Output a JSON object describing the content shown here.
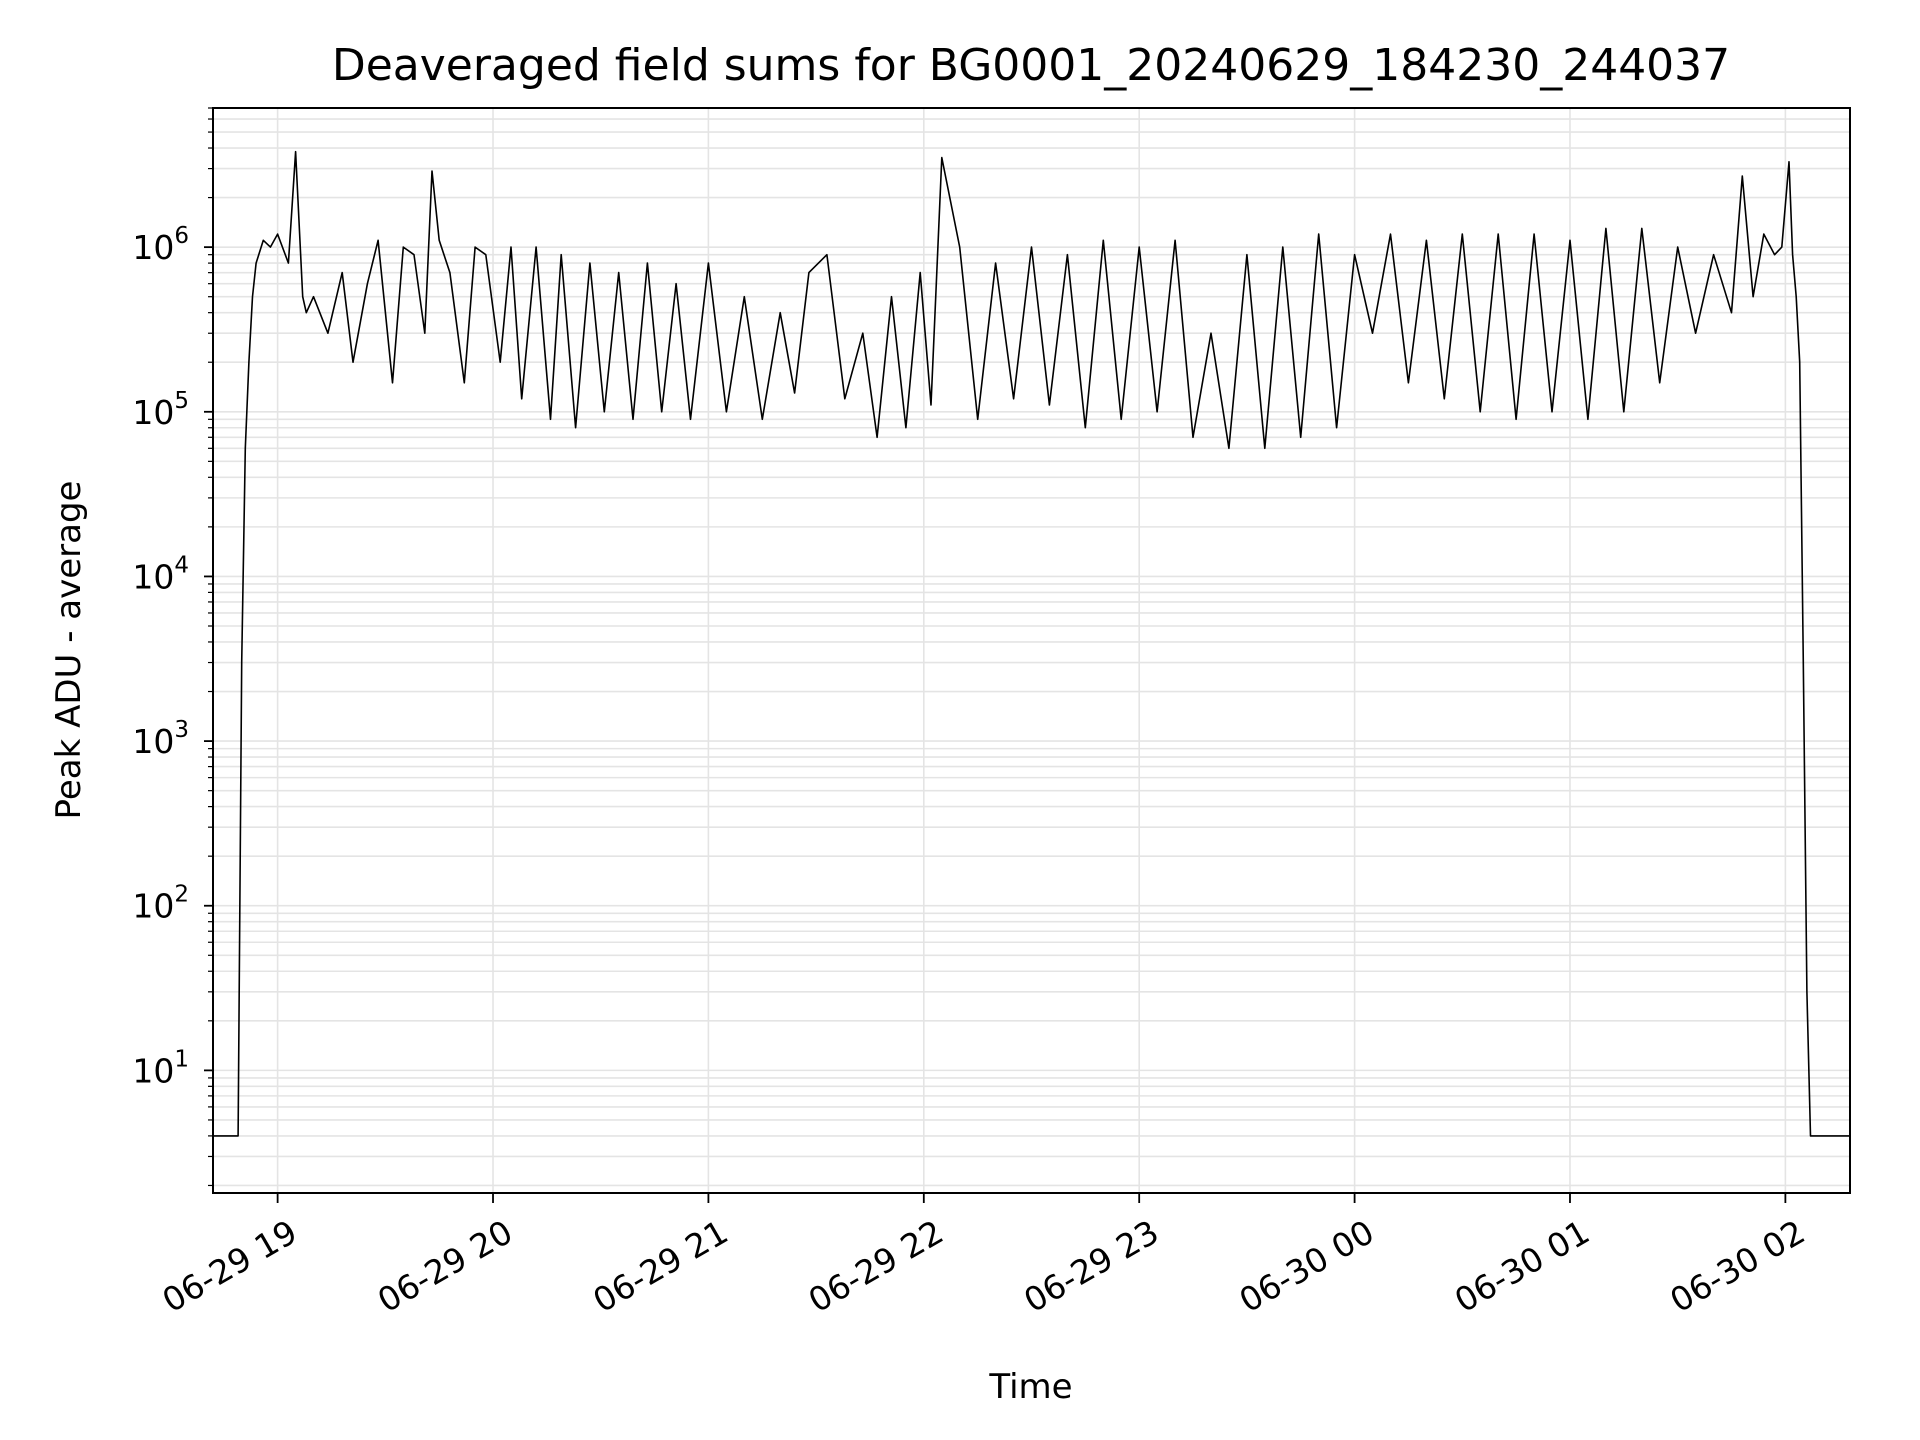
{
  "chart_data": {
    "type": "line",
    "title": "Deaveraged field sums for BG0001_20240629_184230_244037",
    "xlabel": "Time",
    "ylabel": "Peak ADU - average",
    "yscale": "log",
    "ylim": [
      1.8,
      7000000
    ],
    "xlim": [
      "2024-06-29 18:42",
      "2024-06-30 02:18"
    ],
    "grid": true,
    "line_color": "#000000",
    "x_ticks": [
      {
        "label": "06-29 19",
        "t": "2024-06-29 19:00"
      },
      {
        "label": "06-29 20",
        "t": "2024-06-29 20:00"
      },
      {
        "label": "06-29 21",
        "t": "2024-06-29 21:00"
      },
      {
        "label": "06-29 22",
        "t": "2024-06-29 22:00"
      },
      {
        "label": "06-29 23",
        "t": "2024-06-29 23:00"
      },
      {
        "label": "06-30 00",
        "t": "2024-06-30 00:00"
      },
      {
        "label": "06-30 01",
        "t": "2024-06-30 01:00"
      },
      {
        "label": "06-30 02",
        "t": "2024-06-30 02:00"
      }
    ],
    "y_ticks": [
      {
        "base": "10",
        "exp": "1",
        "value": 10
      },
      {
        "base": "10",
        "exp": "2",
        "value": 100
      },
      {
        "base": "10",
        "exp": "3",
        "value": 1000
      },
      {
        "base": "10",
        "exp": "4",
        "value": 10000
      },
      {
        "base": "10",
        "exp": "5",
        "value": 100000
      },
      {
        "base": "10",
        "exp": "6",
        "value": 1000000
      }
    ],
    "series": [
      {
        "name": "",
        "x": [
          "2024-06-29 18:42",
          "2024-06-29 18:47",
          "2024-06-29 18:49",
          "2024-06-29 18:50",
          "2024-06-29 18:51",
          "2024-06-29 18:52",
          "2024-06-29 18:53",
          "2024-06-29 18:54",
          "2024-06-29 18:56",
          "2024-06-29 18:58",
          "2024-06-29 19:00",
          "2024-06-29 19:03",
          "2024-06-29 19:05",
          "2024-06-29 19:07",
          "2024-06-29 19:08",
          "2024-06-29 19:10",
          "2024-06-29 19:14",
          "2024-06-29 19:18",
          "2024-06-29 19:21",
          "2024-06-29 19:25",
          "2024-06-29 19:28",
          "2024-06-29 19:32",
          "2024-06-29 19:35",
          "2024-06-29 19:38",
          "2024-06-29 19:41",
          "2024-06-29 19:43",
          "2024-06-29 19:45",
          "2024-06-29 19:48",
          "2024-06-29 19:52",
          "2024-06-29 19:55",
          "2024-06-29 19:58",
          "2024-06-29 20:02",
          "2024-06-29 20:05",
          "2024-06-29 20:08",
          "2024-06-29 20:12",
          "2024-06-29 20:16",
          "2024-06-29 20:19",
          "2024-06-29 20:23",
          "2024-06-29 20:27",
          "2024-06-29 20:31",
          "2024-06-29 20:35",
          "2024-06-29 20:39",
          "2024-06-29 20:43",
          "2024-06-29 20:47",
          "2024-06-29 20:51",
          "2024-06-29 20:55",
          "2024-06-29 21:00",
          "2024-06-29 21:05",
          "2024-06-29 21:10",
          "2024-06-29 21:15",
          "2024-06-29 21:20",
          "2024-06-29 21:24",
          "2024-06-29 21:28",
          "2024-06-29 21:33",
          "2024-06-29 21:38",
          "2024-06-29 21:43",
          "2024-06-29 21:47",
          "2024-06-29 21:51",
          "2024-06-29 21:55",
          "2024-06-29 21:59",
          "2024-06-29 22:02",
          "2024-06-29 22:05",
          "2024-06-29 22:10",
          "2024-06-29 22:15",
          "2024-06-29 22:20",
          "2024-06-29 22:25",
          "2024-06-29 22:30",
          "2024-06-29 22:35",
          "2024-06-29 22:40",
          "2024-06-29 22:45",
          "2024-06-29 22:50",
          "2024-06-29 22:55",
          "2024-06-29 23:00",
          "2024-06-29 23:05",
          "2024-06-29 23:10",
          "2024-06-29 23:15",
          "2024-06-29 23:20",
          "2024-06-29 23:25",
          "2024-06-29 23:30",
          "2024-06-29 23:35",
          "2024-06-29 23:40",
          "2024-06-29 23:45",
          "2024-06-29 23:50",
          "2024-06-29 23:55",
          "2024-06-30 00:00",
          "2024-06-30 00:05",
          "2024-06-30 00:10",
          "2024-06-30 00:15",
          "2024-06-30 00:20",
          "2024-06-30 00:25",
          "2024-06-30 00:30",
          "2024-06-30 00:35",
          "2024-06-30 00:40",
          "2024-06-30 00:45",
          "2024-06-30 00:50",
          "2024-06-30 00:55",
          "2024-06-30 01:00",
          "2024-06-30 01:05",
          "2024-06-30 01:10",
          "2024-06-30 01:15",
          "2024-06-30 01:20",
          "2024-06-30 01:25",
          "2024-06-30 01:30",
          "2024-06-30 01:35",
          "2024-06-30 01:40",
          "2024-06-30 01:45",
          "2024-06-30 01:48",
          "2024-06-30 01:51",
          "2024-06-30 01:54",
          "2024-06-30 01:57",
          "2024-06-30 01:59",
          "2024-06-30 02:01",
          "2024-06-30 02:02",
          "2024-06-30 02:03",
          "2024-06-30 02:04",
          "2024-06-30 02:05",
          "2024-06-30 02:06",
          "2024-06-30 02:07",
          "2024-06-30 02:08",
          "2024-06-30 02:18"
        ],
        "y": [
          4,
          4,
          4,
          3000,
          60000,
          200000,
          500000,
          800000,
          1100000,
          1000000,
          1200000,
          800000,
          3800000,
          500000,
          400000,
          500000,
          300000,
          700000,
          200000,
          600000,
          1100000,
          150000,
          1000000,
          900000,
          300000,
          2900000,
          1100000,
          700000,
          150000,
          1000000,
          900000,
          200000,
          1000000,
          120000,
          1000000,
          90000,
          900000,
          80000,
          800000,
          100000,
          700000,
          90000,
          800000,
          100000,
          600000,
          90000,
          800000,
          100000,
          500000,
          90000,
          400000,
          130000,
          700000,
          900000,
          120000,
          300000,
          70000,
          500000,
          80000,
          700000,
          110000,
          3500000,
          1000000,
          90000,
          800000,
          120000,
          1000000,
          110000,
          900000,
          80000,
          1100000,
          90000,
          1000000,
          100000,
          1100000,
          70000,
          300000,
          60000,
          900000,
          60000,
          1000000,
          70000,
          1200000,
          80000,
          900000,
          300000,
          1200000,
          150000,
          1100000,
          120000,
          1200000,
          100000,
          1200000,
          90000,
          1200000,
          100000,
          1100000,
          90000,
          1300000,
          100000,
          1300000,
          150000,
          1000000,
          300000,
          900000,
          400000,
          2700000,
          500000,
          1200000,
          900000,
          1000000,
          3300000,
          900000,
          500000,
          200000,
          3000,
          30,
          4,
          4,
          4
        ]
      }
    ]
  }
}
